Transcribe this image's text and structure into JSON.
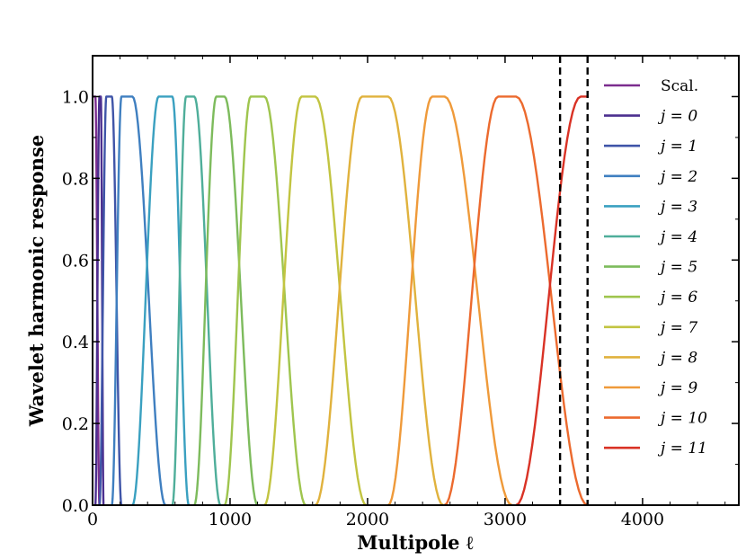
{
  "chart_data": {
    "type": "line",
    "title": "",
    "xlabel": "Multipole ℓ",
    "ylabel": "Wavelet harmonic response",
    "xlim": [
      0,
      4700
    ],
    "ylim": [
      0,
      1.1
    ],
    "xticks": [
      0,
      1000,
      2000,
      3000,
      4000
    ],
    "xtick_labels": [
      "0",
      "1000",
      "2000",
      "3000",
      "4000"
    ],
    "yticks": [
      0.0,
      0.2,
      0.4,
      0.6,
      0.8,
      1.0
    ],
    "ytick_labels": [
      "0.0",
      "0.2",
      "0.4",
      "0.6",
      "0.8",
      "1.0"
    ],
    "vlines": [
      3400,
      3600
    ],
    "legend_position": "right",
    "series": [
      {
        "name": "Scal.",
        "color": "#7b2d8e",
        "points": [
          [
            0,
            1
          ],
          [
            20,
            1
          ],
          [
            50,
            0
          ]
        ]
      },
      {
        "name": "j = 0",
        "color": "#4b2f8f",
        "points": [
          [
            20,
            0
          ],
          [
            50,
            1
          ],
          [
            60,
            1
          ],
          [
            80,
            0
          ]
        ]
      },
      {
        "name": "j = 1",
        "color": "#3f55a8",
        "points": [
          [
            50,
            0
          ],
          [
            100,
            1
          ],
          [
            140,
            1
          ],
          [
            210,
            0
          ]
        ]
      },
      {
        "name": "j = 2",
        "color": "#3f7fc0",
        "points": [
          [
            140,
            0
          ],
          [
            210,
            1
          ],
          [
            290,
            1
          ],
          [
            530,
            0
          ]
        ]
      },
      {
        "name": "j = 3",
        "color": "#3aa0c0",
        "points": [
          [
            290,
            0
          ],
          [
            480,
            1
          ],
          [
            580,
            1
          ],
          [
            700,
            0
          ]
        ]
      },
      {
        "name": "j = 4",
        "color": "#4fae9a",
        "points": [
          [
            580,
            0
          ],
          [
            680,
            1
          ],
          [
            740,
            1
          ],
          [
            930,
            0
          ]
        ]
      },
      {
        "name": "j = 5",
        "color": "#7dbb5c",
        "points": [
          [
            740,
            0
          ],
          [
            900,
            1
          ],
          [
            960,
            1
          ],
          [
            1200,
            0
          ]
        ]
      },
      {
        "name": "j = 6",
        "color": "#9fc54e",
        "points": [
          [
            960,
            0
          ],
          [
            1150,
            1
          ],
          [
            1250,
            1
          ],
          [
            1550,
            0
          ]
        ]
      },
      {
        "name": "j = 7",
        "color": "#c2c441",
        "points": [
          [
            1250,
            0
          ],
          [
            1520,
            1
          ],
          [
            1620,
            1
          ],
          [
            1990,
            0
          ]
        ]
      },
      {
        "name": "j = 8",
        "color": "#e0b23d",
        "points": [
          [
            1620,
            0
          ],
          [
            1960,
            1
          ],
          [
            2150,
            1
          ],
          [
            2550,
            0
          ]
        ]
      },
      {
        "name": "j = 9",
        "color": "#ef9a3a",
        "points": [
          [
            2150,
            0
          ],
          [
            2470,
            1
          ],
          [
            2560,
            1
          ],
          [
            3050,
            0
          ]
        ]
      },
      {
        "name": "j = 10",
        "color": "#ec6a2e",
        "points": [
          [
            2560,
            0
          ],
          [
            2950,
            1
          ],
          [
            3080,
            1
          ],
          [
            3600,
            0
          ]
        ]
      },
      {
        "name": "j = 11",
        "color": "#d93225",
        "points": [
          [
            3080,
            0
          ],
          [
            3550,
            1
          ],
          [
            3600,
            1
          ]
        ]
      }
    ]
  }
}
